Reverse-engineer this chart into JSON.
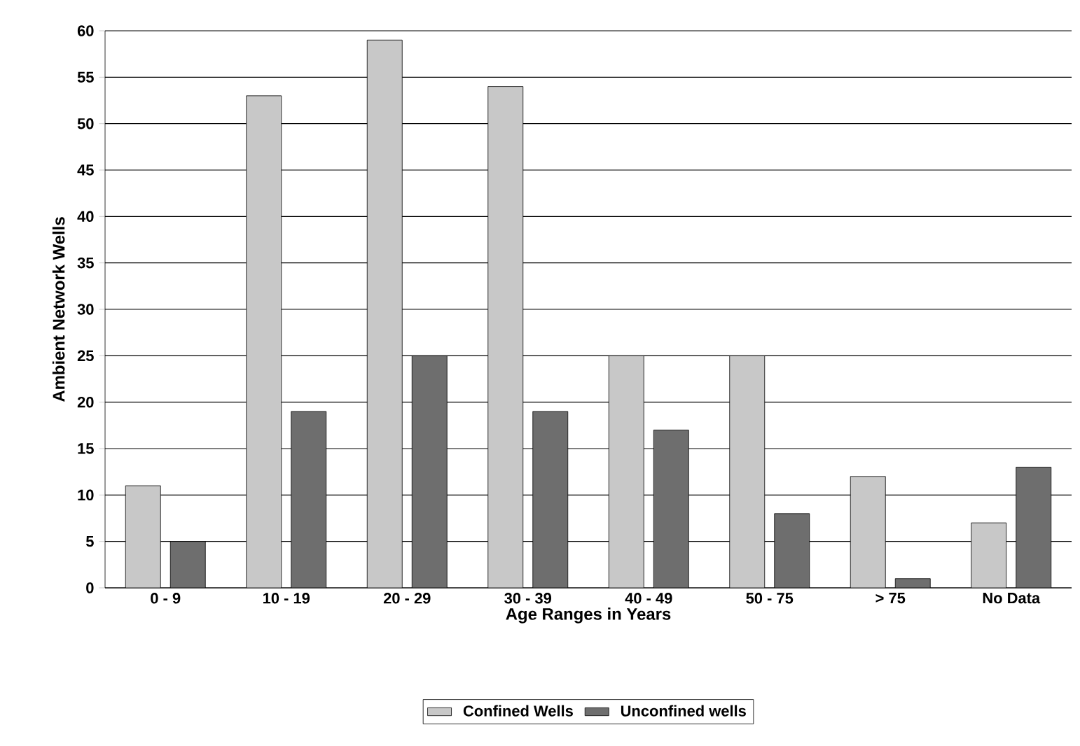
{
  "chart_data": {
    "type": "bar",
    "xlabel": "Age Ranges in Years",
    "ylabel": "Ambient Network Wells",
    "categories": [
      "0 - 9",
      "10 - 19",
      "20 - 29",
      "30 - 39",
      "40 - 49",
      "50 - 75",
      "> 75",
      "No Data"
    ],
    "series": [
      {
        "name": "Confined Wells",
        "color": "#c8c8c8",
        "values": [
          11,
          53,
          59,
          54,
          25,
          25,
          12,
          7
        ]
      },
      {
        "name": "Unconfined wells",
        "color": "#6e6e6e",
        "values": [
          5,
          19,
          25,
          19,
          17,
          8,
          1,
          13
        ]
      }
    ],
    "ylim": [
      0,
      60
    ],
    "yticks": [
      0,
      5,
      10,
      15,
      20,
      25,
      30,
      35,
      40,
      45,
      50,
      55,
      60
    ],
    "grid": "y",
    "legend": "bottom"
  }
}
